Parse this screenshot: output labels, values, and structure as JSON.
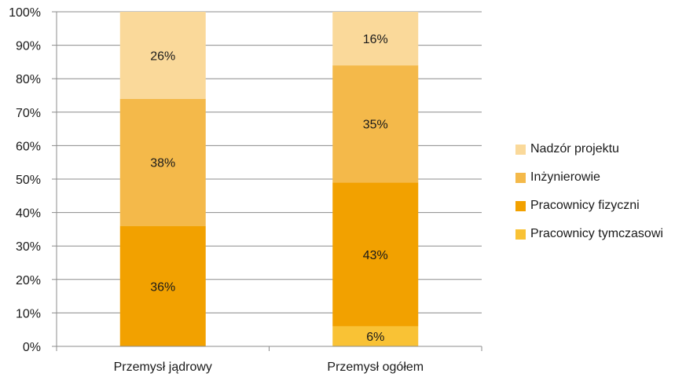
{
  "chart_data": {
    "type": "bar",
    "stacked": true,
    "percent_stacked": true,
    "title": "",
    "xlabel": "",
    "ylabel": "",
    "ylim": [
      0,
      100
    ],
    "y_ticks": [
      "0%",
      "10%",
      "20%",
      "30%",
      "40%",
      "50%",
      "60%",
      "70%",
      "80%",
      "90%",
      "100%"
    ],
    "grid": true,
    "legend_position": "right",
    "categories": [
      "Przemysł jądrowy",
      "Przemysł ogółem"
    ],
    "series": [
      {
        "name": "Pracownicy tymczasowi",
        "color": "#F9C235",
        "values": [
          0,
          6
        ],
        "labels": [
          "",
          "6%"
        ]
      },
      {
        "name": "Pracownicy fizyczni",
        "color": "#F2A100",
        "values": [
          36,
          43
        ],
        "labels": [
          "36%",
          "43%"
        ]
      },
      {
        "name": "Inżynierowie",
        "color": "#F4B94A",
        "values": [
          38,
          35
        ],
        "labels": [
          "38%",
          "35%"
        ]
      },
      {
        "name": "Nadzór projektu",
        "color": "#FAD99A",
        "values": [
          26,
          16
        ],
        "labels": [
          "26%",
          "16%"
        ]
      }
    ],
    "legend_order": [
      "Nadzór projektu",
      "Inżynierowie",
      "Pracownicy fizyczni",
      "Pracownicy tymczasowi"
    ]
  }
}
